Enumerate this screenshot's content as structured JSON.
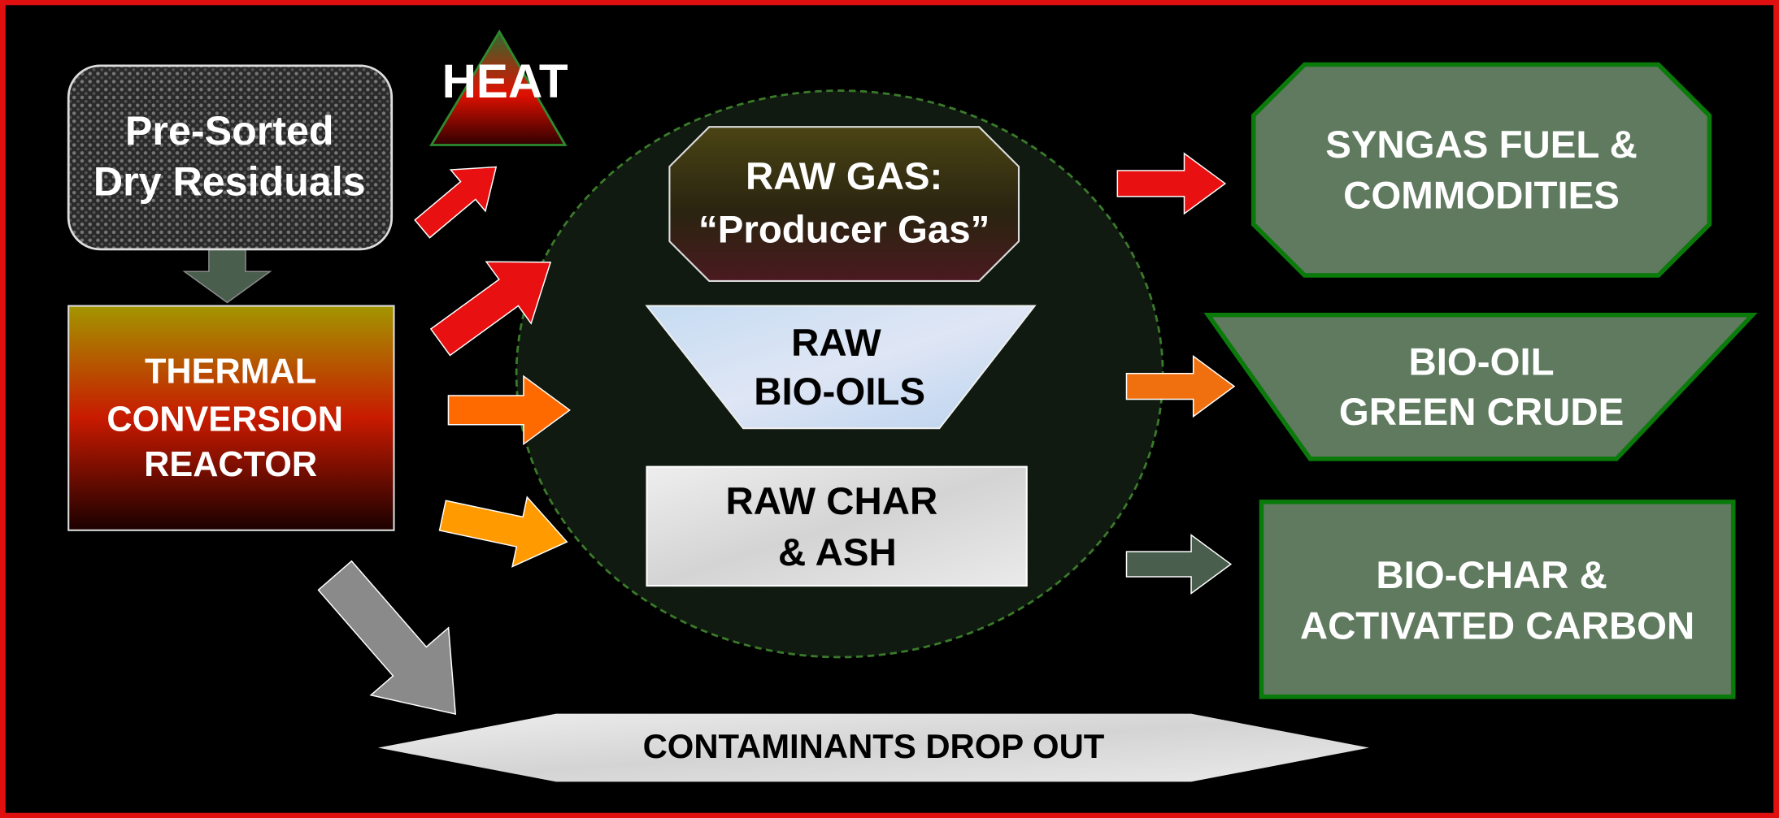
{
  "input": {
    "lines": [
      "Pre-Sorted",
      "Dry Residuals"
    ]
  },
  "heat": {
    "lines": [
      "HEAT"
    ]
  },
  "reactor": {
    "lines": [
      "THERMAL",
      "CONVERSION",
      "REACTOR"
    ]
  },
  "raw_gas": {
    "lines": [
      "RAW GAS:",
      "“Producer Gas”"
    ]
  },
  "raw_bio_oils": {
    "lines": [
      "RAW",
      "BIO-OILS"
    ]
  },
  "raw_char": {
    "lines": [
      "RAW CHAR",
      "& ASH"
    ]
  },
  "syngas": {
    "lines": [
      "SYNGAS FUEL &",
      "COMMODITIES"
    ]
  },
  "bio_oil": {
    "lines": [
      "BIO-OIL",
      "GREEN CRUDE"
    ]
  },
  "bio_char": {
    "lines": [
      "BIO-CHAR &",
      "ACTIVATED CARBON"
    ]
  },
  "contaminants": {
    "lines": [
      "CONTAMINANTS DROP OUT"
    ]
  }
}
